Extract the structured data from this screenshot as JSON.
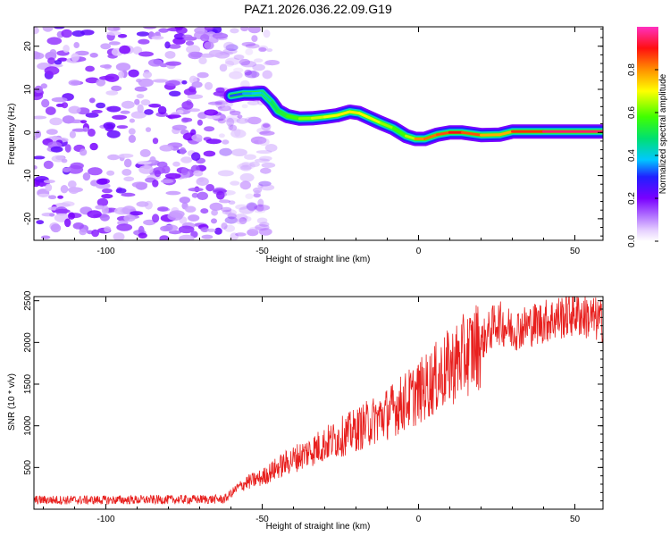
{
  "figure": {
    "title": "PAZ1.2026.036.22.09.G19"
  },
  "chart_data": [
    {
      "type": "heatmap",
      "name": "spectrogram",
      "xlabel": "Height of straight line (km)",
      "ylabel": "Frequency (Hz)",
      "xlim": [
        -123,
        59
      ],
      "ylim": [
        -25,
        24.5
      ],
      "xticks": [
        -100,
        -50,
        0,
        50
      ],
      "yticks": [
        -20,
        -10,
        0,
        10,
        20
      ],
      "colorbar": {
        "label": "Normalized spectral amplitude",
        "range": [
          0,
          1
        ],
        "ticks": [
          "0.0",
          "0.2",
          "0.4",
          "0.6",
          "0.8"
        ],
        "tick_values": [
          0.0,
          0.2,
          0.4,
          0.6,
          0.8
        ]
      },
      "noise_region_x": [
        -123,
        -49
      ],
      "signal_track": {
        "x": [
          -60,
          -56,
          -53,
          -50,
          -47,
          -45,
          -42,
          -38,
          -34,
          -30,
          -26,
          -22,
          -19,
          -16,
          -12,
          -8,
          -4,
          -1,
          2,
          6,
          10,
          14,
          20,
          26,
          30,
          40,
          50,
          59
        ],
        "freq": [
          8.5,
          9,
          9,
          9.2,
          7,
          5,
          3.8,
          3.2,
          3.3,
          3.6,
          4,
          4.8,
          4.5,
          3.5,
          2.2,
          1,
          -0.8,
          -1.5,
          -1.5,
          -0.5,
          0,
          0,
          -0.6,
          -0.5,
          0.2,
          0.2,
          0.2,
          0.2
        ],
        "amp": [
          0.3,
          0.35,
          0.38,
          0.4,
          0.45,
          0.5,
          0.55,
          0.6,
          0.65,
          0.68,
          0.7,
          0.72,
          0.72,
          0.7,
          0.66,
          0.6,
          0.55,
          0.75,
          0.85,
          0.8,
          0.9,
          0.9,
          0.8,
          0.75,
          0.8,
          0.95,
          0.95,
          0.95
        ]
      }
    },
    {
      "type": "line",
      "name": "snr",
      "xlabel": "Height of straight line (km)",
      "ylabel": "SNR (10 * v/v)",
      "xlim": [
        -123,
        59
      ],
      "ylim": [
        0,
        2550
      ],
      "xticks": [
        -100,
        -50,
        0,
        50
      ],
      "yticks": [
        500,
        1000,
        1500,
        2000,
        2500
      ],
      "color": "#e8201e",
      "trend": {
        "x": [
          -123,
          -100,
          -80,
          -62,
          -58,
          -55,
          -50,
          -45,
          -40,
          -30,
          -20,
          -10,
          0,
          10,
          20,
          25,
          30,
          40,
          50,
          59
        ],
        "y": [
          110,
          110,
          115,
          120,
          250,
          320,
          380,
          500,
          600,
          780,
          950,
          1150,
          1400,
          1700,
          2000,
          2250,
          2150,
          2250,
          2350,
          2250
        ]
      }
    }
  ]
}
